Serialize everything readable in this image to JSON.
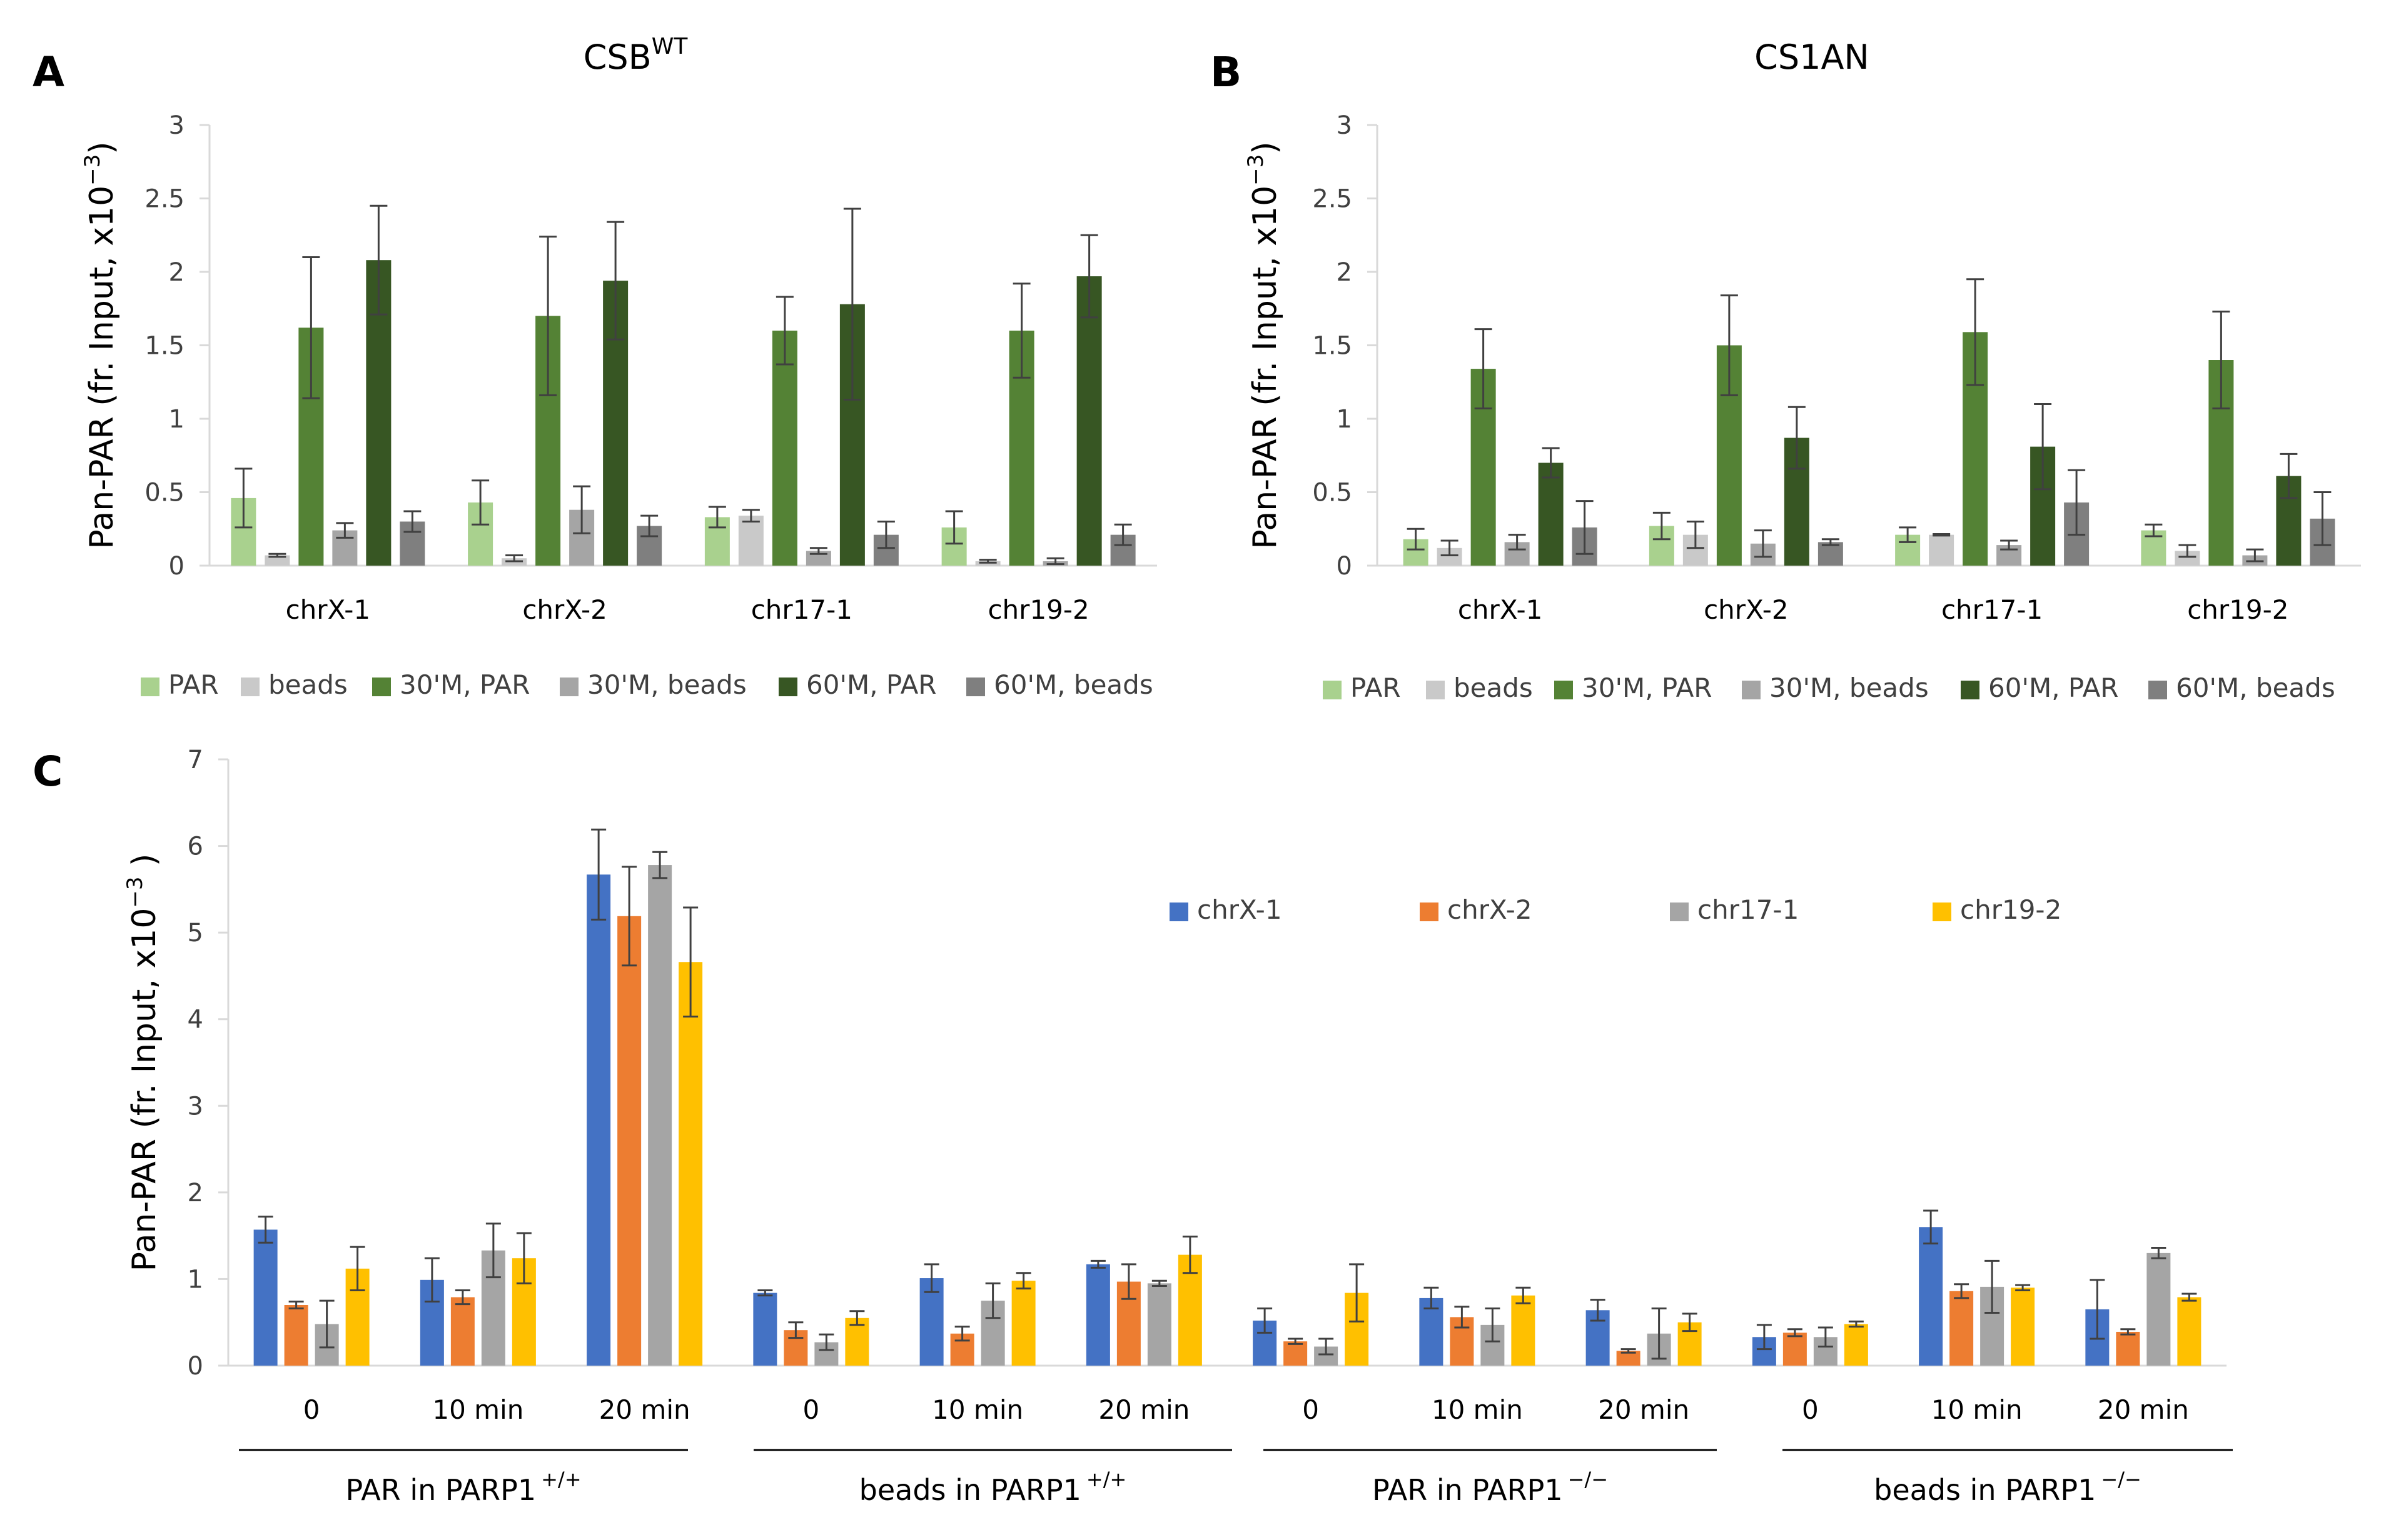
{
  "chart_data": [
    {
      "panel": "A",
      "type": "bar",
      "title": "CSB",
      "title_superscript": "WT",
      "ylabel": "Pan-PAR (fr. Input, x10",
      "ylabel_exponent": "−3",
      "ylabel_close": ")",
      "ylim": [
        0,
        3
      ],
      "yticks": [
        "0",
        "0.5",
        "1",
        "1.5",
        "2",
        "2.5",
        "3"
      ],
      "categories": [
        "chrX-1",
        "chrX-2",
        "chr17-1",
        "chr19-2"
      ],
      "series": [
        {
          "name": "PAR",
          "color": "#a9d18e",
          "values": [
            0.46,
            0.43,
            0.33,
            0.26
          ],
          "errors": [
            0.2,
            0.15,
            0.07,
            0.11
          ]
        },
        {
          "name": "beads",
          "color": "#c9c9c9",
          "values": [
            0.07,
            0.05,
            0.34,
            0.03
          ],
          "errors": [
            0.01,
            0.02,
            0.04,
            0.01
          ]
        },
        {
          "name": "30'M, PAR",
          "color": "#548235",
          "values": [
            1.62,
            1.7,
            1.6,
            1.6
          ],
          "errors": [
            0.48,
            0.54,
            0.23,
            0.32
          ]
        },
        {
          "name": "30'M, beads",
          "color": "#a5a5a5",
          "values": [
            0.24,
            0.38,
            0.1,
            0.03
          ],
          "errors": [
            0.05,
            0.16,
            0.02,
            0.02
          ]
        },
        {
          "name": "60'M, PAR",
          "color": "#375623",
          "values": [
            2.08,
            1.94,
            1.78,
            1.97
          ],
          "errors": [
            0.37,
            0.4,
            0.65,
            0.28
          ]
        },
        {
          "name": "60'M, beads",
          "color": "#7f7f7f",
          "values": [
            0.3,
            0.27,
            0.21,
            0.21
          ],
          "errors": [
            0.07,
            0.07,
            0.09,
            0.07
          ]
        }
      ],
      "legend_position": "bottom"
    },
    {
      "panel": "B",
      "type": "bar",
      "title": "CS1AN",
      "ylabel": "Pan-PAR (fr. Input, x10",
      "ylabel_exponent": "−3",
      "ylabel_close": ")",
      "ylim": [
        0,
        3
      ],
      "yticks": [
        "0",
        "0.5",
        "1",
        "1.5",
        "2",
        "2.5",
        "3"
      ],
      "categories": [
        "chrX-1",
        "chrX-2",
        "chr17-1",
        "chr19-2"
      ],
      "series": [
        {
          "name": "PAR",
          "color": "#a9d18e",
          "values": [
            0.18,
            0.27,
            0.21,
            0.24
          ],
          "errors": [
            0.07,
            0.09,
            0.05,
            0.04
          ]
        },
        {
          "name": "beads",
          "color": "#c9c9c9",
          "values": [
            0.12,
            0.21,
            0.21,
            0.1
          ],
          "errors": [
            0.05,
            0.09,
            0.005,
            0.04
          ]
        },
        {
          "name": "30'M, PAR",
          "color": "#548235",
          "values": [
            1.34,
            1.5,
            1.59,
            1.4
          ],
          "errors": [
            0.27,
            0.34,
            0.36,
            0.33
          ]
        },
        {
          "name": "30'M, beads",
          "color": "#a5a5a5",
          "values": [
            0.16,
            0.15,
            0.14,
            0.07
          ],
          "errors": [
            0.05,
            0.09,
            0.03,
            0.04
          ]
        },
        {
          "name": "60'M, PAR",
          "color": "#375623",
          "values": [
            0.7,
            0.87,
            0.81,
            0.61
          ],
          "errors": [
            0.1,
            0.21,
            0.29,
            0.15
          ]
        },
        {
          "name": "60'M, beads",
          "color": "#7f7f7f",
          "values": [
            0.26,
            0.16,
            0.43,
            0.32
          ],
          "errors": [
            0.18,
            0.02,
            0.22,
            0.18
          ]
        }
      ],
      "legend_position": "bottom"
    },
    {
      "panel": "C",
      "type": "bar",
      "title": "",
      "ylabel": "Pan-PAR (fr. Input, x10",
      "ylabel_exponent": "−3",
      "ylabel_close": " )",
      "ylim": [
        0,
        7
      ],
      "yticks": [
        "0",
        "1",
        "2",
        "3",
        "4",
        "5",
        "6",
        "7"
      ],
      "categories": [
        "0",
        "10 min",
        "20 min",
        "0",
        "10 min",
        "20 min",
        "0",
        "10 min",
        "20 min",
        "0",
        "10 min",
        "20 min"
      ],
      "groups": [
        {
          "label": "PAR in PARP1",
          "superscript": "+/+"
        },
        {
          "label": "beads in PARP1",
          "superscript": "+/+"
        },
        {
          "label": "PAR in PARP1",
          "superscript": "−/−"
        },
        {
          "label": "beads in PARP1",
          "superscript": "−/−"
        }
      ],
      "series": [
        {
          "name": "chrX-1",
          "color": "#4472c4",
          "values": [
            1.57,
            0.99,
            5.67,
            0.84,
            1.01,
            1.17,
            0.52,
            0.78,
            0.64,
            0.33,
            1.6,
            0.65
          ],
          "errors": [
            0.15,
            0.25,
            0.52,
            0.03,
            0.16,
            0.04,
            0.14,
            0.12,
            0.12,
            0.14,
            0.19,
            0.34
          ]
        },
        {
          "name": "chrX-2",
          "color": "#ed7d31",
          "values": [
            0.7,
            0.79,
            5.19,
            0.41,
            0.37,
            0.97,
            0.28,
            0.56,
            0.17,
            0.38,
            0.86,
            0.39
          ],
          "errors": [
            0.04,
            0.08,
            0.57,
            0.09,
            0.08,
            0.2,
            0.03,
            0.12,
            0.02,
            0.04,
            0.08,
            0.03
          ]
        },
        {
          "name": "chr17-1",
          "color": "#a5a5a5",
          "values": [
            0.48,
            1.33,
            5.78,
            0.27,
            0.75,
            0.95,
            0.22,
            0.47,
            0.37,
            0.33,
            0.91,
            1.3
          ],
          "errors": [
            0.27,
            0.31,
            0.15,
            0.09,
            0.2,
            0.03,
            0.09,
            0.19,
            0.29,
            0.11,
            0.3,
            0.06
          ]
        },
        {
          "name": "chr19-2",
          "color": "#ffc000",
          "values": [
            1.12,
            1.24,
            4.66,
            0.55,
            0.98,
            1.28,
            0.84,
            0.81,
            0.5,
            0.48,
            0.9,
            0.79
          ],
          "errors": [
            0.25,
            0.29,
            0.63,
            0.08,
            0.09,
            0.21,
            0.33,
            0.09,
            0.1,
            0.03,
            0.03,
            0.04
          ]
        }
      ],
      "legend_position": "top-right"
    }
  ]
}
